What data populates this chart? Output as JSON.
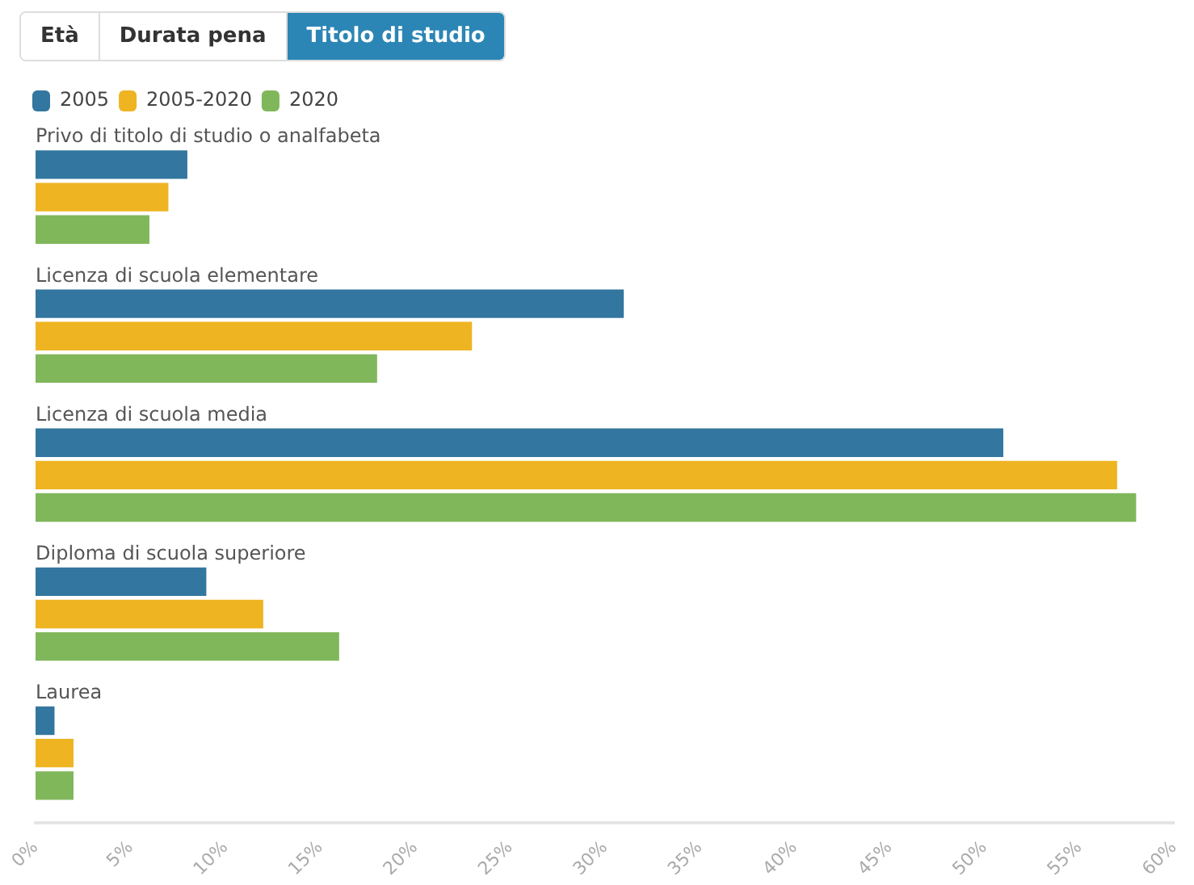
{
  "chart_data": {
    "type": "bar",
    "orientation": "horizontal",
    "categories": [
      "Privo di titolo di studio o analfabeta",
      "Licenza di scuola elementare",
      "Licenza di scuola media",
      "Diploma di scuola superiore",
      "Laurea"
    ],
    "series": [
      {
        "name": "2005",
        "color": "#33769f",
        "values": [
          8,
          31,
          51,
          9,
          1
        ]
      },
      {
        "name": "2005-2020",
        "color": "#eeb422",
        "values": [
          7,
          23,
          57,
          12,
          2
        ]
      },
      {
        "name": "2020",
        "color": "#80b75b",
        "values": [
          6,
          18,
          58,
          16,
          2
        ]
      }
    ],
    "xlim": [
      0,
      60
    ],
    "xticks": [
      {
        "value": 0,
        "label": "0%"
      },
      {
        "value": 5,
        "label": "5%"
      },
      {
        "value": 10,
        "label": "10%"
      },
      {
        "value": 15,
        "label": "15%"
      },
      {
        "value": 20,
        "label": "20%"
      },
      {
        "value": 25,
        "label": "25%"
      },
      {
        "value": 30,
        "label": "30%"
      },
      {
        "value": 35,
        "label": "35%"
      },
      {
        "value": 40,
        "label": "40%"
      },
      {
        "value": 45,
        "label": "45%"
      },
      {
        "value": 50,
        "label": "50%"
      },
      {
        "value": 55,
        "label": "55%"
      },
      {
        "value": 60,
        "label": "60%"
      }
    ],
    "grid": false,
    "legend": "top left",
    "annotations": [
      "Età",
      "Durata pena",
      "Titolo di studio"
    ]
  }
}
